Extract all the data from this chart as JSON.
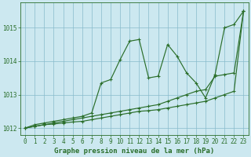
{
  "title": "Graphe pression niveau de la mer (hPa)",
  "xlim": [
    -0.5,
    23.5
  ],
  "ylim": [
    1011.8,
    1015.75
  ],
  "yticks": [
    1012,
    1013,
    1014,
    1015
  ],
  "xticks": [
    0,
    1,
    2,
    3,
    4,
    5,
    6,
    7,
    8,
    9,
    10,
    11,
    12,
    13,
    14,
    15,
    16,
    17,
    18,
    19,
    20,
    21,
    22,
    23
  ],
  "bg_color": "#cce8f0",
  "grid_color": "#88bbcc",
  "line_color": "#2a6e2a",
  "series": {
    "s1": [
      1012.0,
      1012.1,
      1012.15,
      1012.2,
      1012.25,
      1012.3,
      1012.35,
      1012.45,
      1013.35,
      1013.45,
      1014.05,
      1014.6,
      1014.65,
      1013.5,
      1013.55,
      1014.5,
      1014.15,
      1013.65,
      1013.35,
      1012.9,
      1013.6,
      1015.0,
      1015.1,
      1015.5
    ],
    "s2": [
      1012.0,
      1012.05,
      1012.1,
      1012.15,
      1012.2,
      1012.25,
      1012.3,
      1012.35,
      1012.4,
      1012.45,
      1012.5,
      1012.55,
      1012.6,
      1012.65,
      1012.7,
      1012.8,
      1012.9,
      1013.0,
      1013.1,
      1013.15,
      1013.55,
      1013.6,
      1013.65,
      1015.5
    ],
    "s3": [
      1012.0,
      1012.05,
      1012.1,
      1012.12,
      1012.15,
      1012.18,
      1012.2,
      1012.25,
      1012.3,
      1012.35,
      1012.4,
      1012.45,
      1012.5,
      1012.52,
      1012.55,
      1012.6,
      1012.65,
      1012.7,
      1012.75,
      1012.8,
      1012.9,
      1013.0,
      1013.1,
      1015.5
    ]
  },
  "title_fontsize": 6.5,
  "tick_fontsize": 5.5
}
